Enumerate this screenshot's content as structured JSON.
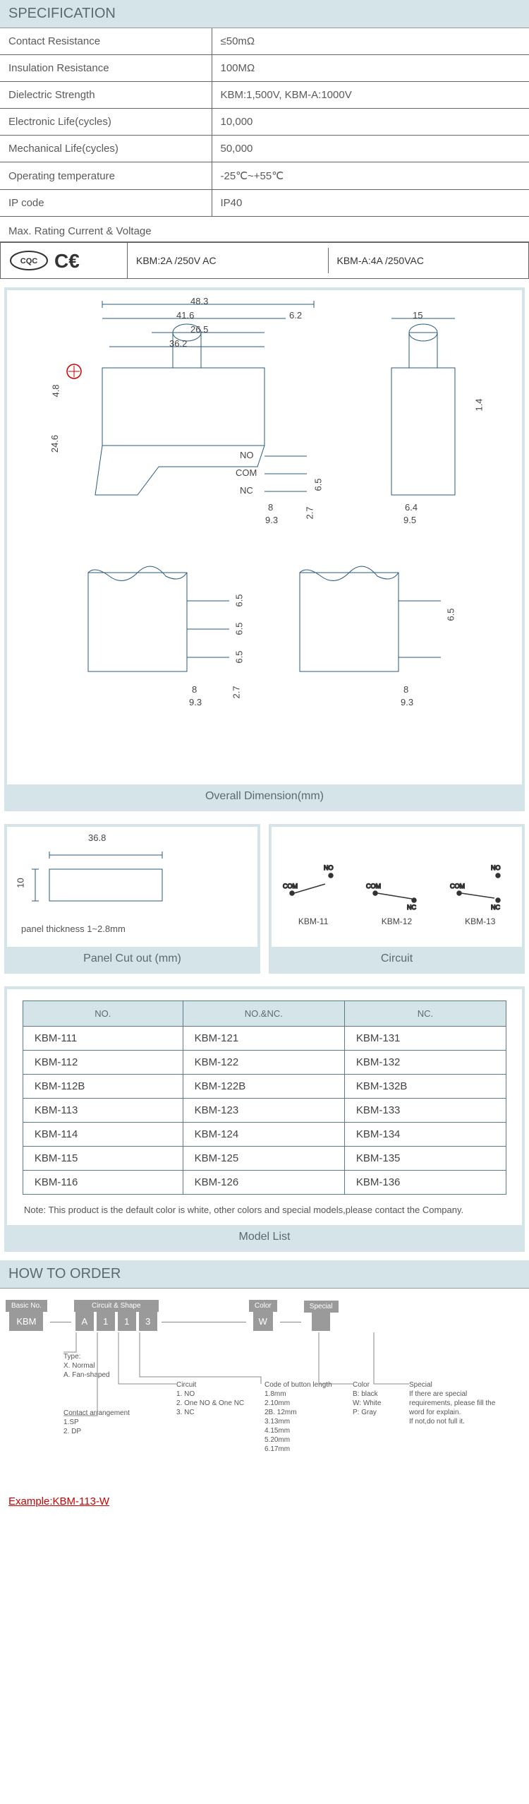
{
  "specHeader": "SPECIFICATION",
  "specs": [
    {
      "label": "Contact Resistance",
      "value": "≤50mΩ"
    },
    {
      "label": "Insulation Resistance",
      "value": "100MΩ"
    },
    {
      "label": "Dielectric Strength",
      "value": "KBM:1,500V, KBM-A:1000V"
    },
    {
      "label": "Electronic Life(cycles)",
      "value": "10,000"
    },
    {
      "label": "Mechanical Life(cycles)",
      "value": "50,000"
    },
    {
      "label": "Operating temperature",
      "value": "-25℃~+55℃"
    },
    {
      "label": "IP code",
      "value": "IP40"
    }
  ],
  "maxRatingHeader": "Max. Rating Current & Voltage",
  "rating1": "KBM:2A /250V AC",
  "rating2": "KBM-A:4A /250VAC",
  "overallDimLabel": "Overall Dimension(mm)",
  "dims": {
    "d483": "48.3",
    "d416": "41.6",
    "d62": "6.2",
    "d265": "26.5",
    "d362": "36.2",
    "d48": "4.8",
    "d246": "24.6",
    "d15": "15",
    "d14": "1.4",
    "d64": "6.4",
    "d95": "9.5",
    "d8": "8",
    "d93": "9.3",
    "d27": "2.7",
    "d65": "6.5",
    "no": "NO",
    "com": "COM",
    "nc": "NC"
  },
  "panelCutoutLabel": "Panel Cut out (mm)",
  "cutout": {
    "w": "36.8",
    "h": "10",
    "thickness": "panel thickness 1~2.8mm"
  },
  "circuitLabel": "Circuit",
  "circuits": [
    {
      "name": "KBM-11",
      "t1": "COM",
      "t2": "NO"
    },
    {
      "name": "KBM-12",
      "t1": "COM",
      "t2": "NC"
    },
    {
      "name": "KBM-13",
      "t1": "COM",
      "t2": "NO",
      "t3": "NC"
    }
  ],
  "modelHeaders": [
    "NO.",
    "NO.&NC.",
    "NC."
  ],
  "modelRows": [
    [
      "KBM-111",
      "KBM-121",
      "KBM-131"
    ],
    [
      "KBM-112",
      "KBM-122",
      "KBM-132"
    ],
    [
      "KBM-112B",
      "KBM-122B",
      "KBM-132B"
    ],
    [
      "KBM-113",
      "KBM-123",
      "KBM-133"
    ],
    [
      "KBM-114",
      "KBM-124",
      "KBM-134"
    ],
    [
      "KBM-115",
      "KBM-125",
      "KBM-135"
    ],
    [
      "KBM-116",
      "KBM-126",
      "KBM-136"
    ]
  ],
  "modelNote": "Note: This product is the default color is white, other colors and special models,please contact the Company.",
  "modelListLabel": "Model List",
  "howToOrderHeader": "HOW TO ORDER",
  "order": {
    "basicHeader": "Basic No.",
    "basic": "KBM",
    "circuitShapeHeader": "Circuit & Shape",
    "shape": "A",
    "c1": "1",
    "c2": "1",
    "c3": "3",
    "colorHeader": "Color",
    "color": "W",
    "specialHeader": "Special",
    "special": "",
    "typeTitle": "Type:",
    "typeLines": [
      "X. Normal",
      "A. Fan-shaped"
    ],
    "contactTitle": "Contact arrangement",
    "contactLines": [
      "1.SP",
      "2. DP"
    ],
    "circuitTitle": "Circuit",
    "circuitLines": [
      "1. NO",
      "2. One NO & One NC",
      "3. NC"
    ],
    "codeTitle": "Code of button length",
    "codeLines": [
      "1.8mm",
      "2.10mm",
      "2B. 12mm",
      "3.13mm",
      "4.15mm",
      "5.20mm",
      "6.17mm"
    ],
    "colorTitle": "Color",
    "colorLines": [
      "B: black",
      "W: White",
      "P: Gray"
    ],
    "specialTitle": "Special",
    "specialLines": [
      "If there are special requirements, please fill the word for explain.",
      "",
      "If not,do not full it."
    ],
    "example": "Example:KBM-113-W"
  }
}
